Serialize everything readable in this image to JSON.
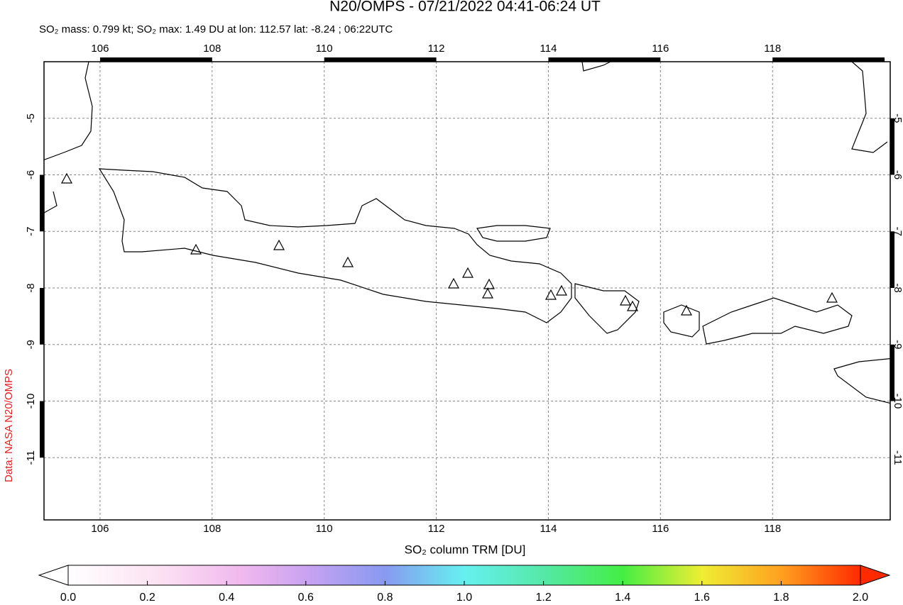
{
  "title": "N20/OMPS - 07/21/2022 04:41-06:24 UT",
  "subtitle": "SO₂ mass: 0.799 kt; SO₂ max: 1.49 DU at lon: 112.57 lat: -8.24 ; 06:22UTC",
  "credit": "Data: NASA N20/OMPS",
  "map": {
    "xlim": [
      105,
      120.1
    ],
    "ylim": [
      -12.1,
      -4.0
    ],
    "xticks": [
      106,
      108,
      110,
      112,
      114,
      116,
      118
    ],
    "yticks": [
      -5,
      -6,
      -7,
      -8,
      -9,
      -10,
      -11
    ]
  },
  "colorbar": {
    "label": "SO₂ column TRM [DU]",
    "lim": [
      0,
      2
    ],
    "ticks": [
      {
        "value": 0,
        "label": "0.0"
      },
      {
        "value": 0.2,
        "label": "0.2"
      },
      {
        "value": 0.4,
        "label": "0.4"
      },
      {
        "value": 0.6,
        "label": "0.6"
      },
      {
        "value": 0.8,
        "label": "0.8"
      },
      {
        "value": 1,
        "label": "1.0"
      },
      {
        "value": 1.2,
        "label": "1.2"
      },
      {
        "value": 1.4,
        "label": "1.4"
      },
      {
        "value": 1.6,
        "label": "1.6"
      },
      {
        "value": 1.8,
        "label": "1.8"
      },
      {
        "value": 2,
        "label": "2.0"
      }
    ]
  }
}
